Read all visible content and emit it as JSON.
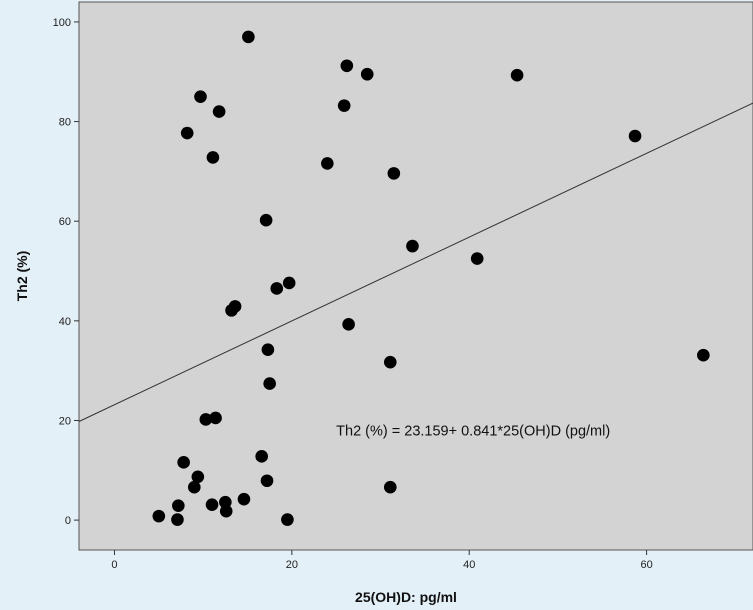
{
  "chart_data": {
    "type": "scatter",
    "title": "",
    "xlabel": "25(OH)D: pg/ml",
    "ylabel": "Th2 (%)",
    "xlim": [
      -4,
      72
    ],
    "ylim": [
      -6,
      104
    ],
    "xticks": [
      0,
      20,
      40,
      60
    ],
    "yticks": [
      0,
      20,
      40,
      60,
      80,
      100
    ],
    "grid": false,
    "legend": "none",
    "colors": {
      "plot_background": "#d3d3d3",
      "page_background": "#e4f0f8",
      "point": "#000000",
      "fit_line": "#333333"
    },
    "points": [
      {
        "x": 15.1,
        "y": 97.0
      },
      {
        "x": 26.2,
        "y": 91.2
      },
      {
        "x": 28.5,
        "y": 89.5
      },
      {
        "x": 45.4,
        "y": 89.3
      },
      {
        "x": 9.7,
        "y": 85.0
      },
      {
        "x": 25.9,
        "y": 83.2
      },
      {
        "x": 11.8,
        "y": 82.0
      },
      {
        "x": 8.2,
        "y": 77.7
      },
      {
        "x": 58.7,
        "y": 77.1
      },
      {
        "x": 11.1,
        "y": 72.8
      },
      {
        "x": 24.0,
        "y": 71.6
      },
      {
        "x": 31.5,
        "y": 69.6
      },
      {
        "x": 17.1,
        "y": 60.2
      },
      {
        "x": 33.6,
        "y": 55.0
      },
      {
        "x": 40.9,
        "y": 52.5
      },
      {
        "x": 19.7,
        "y": 47.6
      },
      {
        "x": 18.3,
        "y": 46.5
      },
      {
        "x": 13.6,
        "y": 42.9
      },
      {
        "x": 13.2,
        "y": 42.1
      },
      {
        "x": 26.4,
        "y": 39.3
      },
      {
        "x": 17.3,
        "y": 34.2
      },
      {
        "x": 66.4,
        "y": 33.1
      },
      {
        "x": 31.1,
        "y": 31.7
      },
      {
        "x": 17.5,
        "y": 27.4
      },
      {
        "x": 11.4,
        "y": 20.5
      },
      {
        "x": 10.3,
        "y": 20.2
      },
      {
        "x": 16.6,
        "y": 12.8
      },
      {
        "x": 7.8,
        "y": 11.6
      },
      {
        "x": 9.4,
        "y": 8.7
      },
      {
        "x": 17.2,
        "y": 7.9
      },
      {
        "x": 9.0,
        "y": 6.6
      },
      {
        "x": 31.1,
        "y": 6.6
      },
      {
        "x": 14.6,
        "y": 4.2
      },
      {
        "x": 12.5,
        "y": 3.6
      },
      {
        "x": 11.0,
        "y": 3.1
      },
      {
        "x": 7.2,
        "y": 2.9
      },
      {
        "x": 12.6,
        "y": 1.8
      },
      {
        "x": 5.0,
        "y": 0.8
      },
      {
        "x": 7.1,
        "y": 0.1
      },
      {
        "x": 19.5,
        "y": 0.1
      }
    ],
    "fit_line": {
      "intercept": 23.159,
      "slope": 0.841
    },
    "annotation": {
      "text": "Th2 (%) = 23.159+ 0.841*25(OH)D (pg/ml)",
      "x": 25,
      "y": 17
    }
  }
}
